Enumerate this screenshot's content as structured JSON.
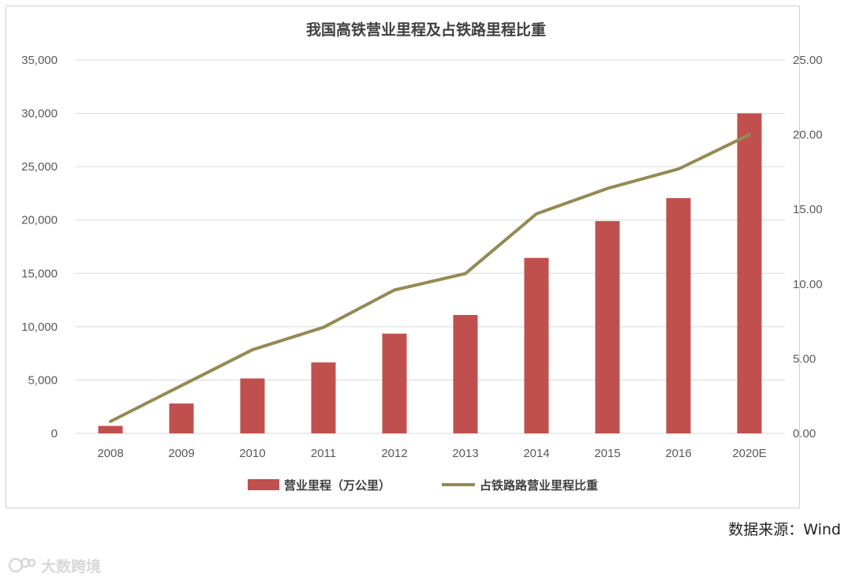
{
  "chart_data": {
    "type": "bar",
    "title": "我国高铁营业里程及占铁路里程比重",
    "categories": [
      "2008",
      "2009",
      "2010",
      "2011",
      "2012",
      "2013",
      "2014",
      "2015",
      "2016",
      "2020E"
    ],
    "series": [
      {
        "name": "营业里程（万公里）",
        "type": "bar",
        "axis": "left",
        "color": "#c0504d",
        "values": [
          700,
          2800,
          5150,
          6650,
          9350,
          11100,
          16450,
          19900,
          22050,
          30000
        ]
      },
      {
        "name": "占铁路路营业里程比重",
        "type": "line",
        "axis": "right",
        "color": "#948a54",
        "values": [
          0.8,
          3.2,
          5.6,
          7.1,
          9.6,
          10.7,
          14.7,
          16.4,
          17.7,
          20.0
        ]
      }
    ],
    "y_left": {
      "min": 0,
      "max": 35000,
      "ticks": [
        "0",
        "5,000",
        "10,000",
        "15,000",
        "20,000",
        "25,000",
        "30,000",
        "35,000"
      ]
    },
    "y_right": {
      "min": 0,
      "max": 25,
      "ticks": [
        "0.00",
        "5.00",
        "10.00",
        "15.00",
        "20.00",
        "25.00"
      ]
    },
    "grid": true,
    "legend_position": "bottom"
  },
  "source": "数据来源：Wind",
  "watermark": "大数跨境"
}
